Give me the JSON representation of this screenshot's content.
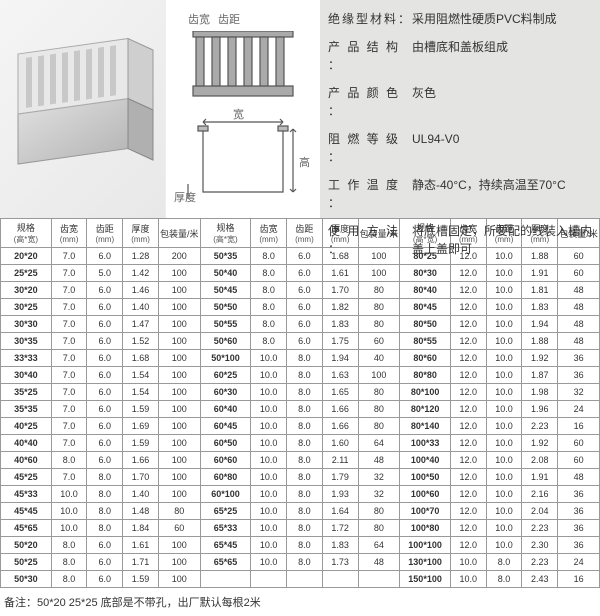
{
  "diagram": {
    "tooth_width": "齿宽",
    "tooth_pitch": "齿距",
    "width": "宽",
    "height": "高",
    "thickness": "厚度"
  },
  "properties": [
    {
      "key": "绝缘型材料：",
      "val": "采用阻燃性硬质PVC料制成"
    },
    {
      "key": "产 品 结 构 ：",
      "val": "由槽底和盖板组成"
    },
    {
      "key": "产 品 颜 色 ：",
      "val": "灰色"
    },
    {
      "key": "阻 燃 等 级 ：",
      "val": "UL94-V0"
    },
    {
      "key": "工 作 温 度 ：",
      "val": "静态-40°C，持续高温至70°C"
    },
    {
      "key": "使 用 方 法 ：",
      "val": "将底槽固定，所要配的线装入槽内盖上盖即可"
    }
  ],
  "headers": [
    {
      "h1": "规格",
      "h2": "(高*宽)"
    },
    {
      "h1": "齿宽",
      "h2": "(mm)"
    },
    {
      "h1": "齿距",
      "h2": "(mm)"
    },
    {
      "h1": "厚度",
      "h2": "(mm)"
    },
    {
      "h1": "包装量/米",
      "h2": ""
    }
  ],
  "table": {
    "col1": [
      [
        "20*20",
        "7.0",
        "6.0",
        "1.28",
        "200"
      ],
      [
        "25*25",
        "7.0",
        "5.0",
        "1.42",
        "100"
      ],
      [
        "30*20",
        "7.0",
        "6.0",
        "1.46",
        "100"
      ],
      [
        "30*25",
        "7.0",
        "6.0",
        "1.40",
        "100"
      ],
      [
        "30*30",
        "7.0",
        "6.0",
        "1.47",
        "100"
      ],
      [
        "30*35",
        "7.0",
        "6.0",
        "1.52",
        "100"
      ],
      [
        "33*33",
        "7.0",
        "6.0",
        "1.68",
        "100"
      ],
      [
        "30*40",
        "7.0",
        "6.0",
        "1.54",
        "100"
      ],
      [
        "35*25",
        "7.0",
        "6.0",
        "1.54",
        "100"
      ],
      [
        "35*35",
        "7.0",
        "6.0",
        "1.59",
        "100"
      ],
      [
        "40*25",
        "7.0",
        "6.0",
        "1.69",
        "100"
      ],
      [
        "40*40",
        "7.0",
        "6.0",
        "1.59",
        "100"
      ],
      [
        "40*60",
        "8.0",
        "6.0",
        "1.66",
        "100"
      ],
      [
        "45*25",
        "7.0",
        "8.0",
        "1.70",
        "100"
      ],
      [
        "45*33",
        "10.0",
        "8.0",
        "1.40",
        "100"
      ],
      [
        "45*45",
        "10.0",
        "8.0",
        "1.48",
        "80"
      ],
      [
        "45*65",
        "10.0",
        "8.0",
        "1.84",
        "60"
      ],
      [
        "50*20",
        "8.0",
        "6.0",
        "1.61",
        "100"
      ],
      [
        "50*25",
        "8.0",
        "6.0",
        "1.71",
        "100"
      ],
      [
        "50*30",
        "8.0",
        "6.0",
        "1.59",
        "100"
      ]
    ],
    "col2": [
      [
        "50*35",
        "8.0",
        "6.0",
        "1.68",
        "100"
      ],
      [
        "50*40",
        "8.0",
        "6.0",
        "1.61",
        "100"
      ],
      [
        "50*45",
        "8.0",
        "6.0",
        "1.70",
        "80"
      ],
      [
        "50*50",
        "8.0",
        "6.0",
        "1.82",
        "80"
      ],
      [
        "50*55",
        "8.0",
        "6.0",
        "1.83",
        "80"
      ],
      [
        "50*60",
        "8.0",
        "6.0",
        "1.75",
        "60"
      ],
      [
        "50*100",
        "10.0",
        "8.0",
        "1.94",
        "40"
      ],
      [
        "60*25",
        "10.0",
        "8.0",
        "1.63",
        "100"
      ],
      [
        "60*30",
        "10.0",
        "8.0",
        "1.65",
        "80"
      ],
      [
        "60*40",
        "10.0",
        "8.0",
        "1.66",
        "80"
      ],
      [
        "60*45",
        "10.0",
        "8.0",
        "1.66",
        "80"
      ],
      [
        "60*50",
        "10.0",
        "8.0",
        "1.60",
        "64"
      ],
      [
        "60*60",
        "10.0",
        "8.0",
        "2.11",
        "48"
      ],
      [
        "60*80",
        "10.0",
        "8.0",
        "1.79",
        "32"
      ],
      [
        "60*100",
        "10.0",
        "8.0",
        "1.93",
        "32"
      ],
      [
        "65*25",
        "10.0",
        "8.0",
        "1.64",
        "80"
      ],
      [
        "65*33",
        "10.0",
        "8.0",
        "1.72",
        "80"
      ],
      [
        "65*45",
        "10.0",
        "8.0",
        "1.83",
        "64"
      ],
      [
        "65*65",
        "10.0",
        "8.0",
        "1.73",
        "48"
      ]
    ],
    "col3": [
      [
        "80*25",
        "12.0",
        "10.0",
        "1.88",
        "60"
      ],
      [
        "80*30",
        "12.0",
        "10.0",
        "1.91",
        "60"
      ],
      [
        "80*40",
        "12.0",
        "10.0",
        "1.81",
        "48"
      ],
      [
        "80*45",
        "12.0",
        "10.0",
        "1.83",
        "48"
      ],
      [
        "80*50",
        "12.0",
        "10.0",
        "1.94",
        "48"
      ],
      [
        "80*55",
        "12.0",
        "10.0",
        "1.88",
        "48"
      ],
      [
        "80*60",
        "12.0",
        "10.0",
        "1.92",
        "36"
      ],
      [
        "80*80",
        "12.0",
        "10.0",
        "1.87",
        "36"
      ],
      [
        "80*100",
        "12.0",
        "10.0",
        "1.98",
        "32"
      ],
      [
        "80*120",
        "12.0",
        "10.0",
        "1.96",
        "24"
      ],
      [
        "80*140",
        "12.0",
        "10.0",
        "2.23",
        "16"
      ],
      [
        "100*33",
        "12.0",
        "10.0",
        "1.92",
        "60"
      ],
      [
        "100*40",
        "12.0",
        "10.0",
        "2.08",
        "60"
      ],
      [
        "100*50",
        "12.0",
        "10.0",
        "1.91",
        "48"
      ],
      [
        "100*60",
        "12.0",
        "10.0",
        "2.16",
        "36"
      ],
      [
        "100*70",
        "12.0",
        "10.0",
        "2.04",
        "36"
      ],
      [
        "100*80",
        "12.0",
        "10.0",
        "2.23",
        "36"
      ],
      [
        "100*100",
        "12.0",
        "10.0",
        "2.30",
        "36"
      ],
      [
        "130*100",
        "10.0",
        "8.0",
        "2.23",
        "24"
      ],
      [
        "150*100",
        "10.0",
        "8.0",
        "2.43",
        "16"
      ]
    ]
  },
  "note": "备注：50*20 25*25 底部是不带孔，出厂默认每根2米"
}
